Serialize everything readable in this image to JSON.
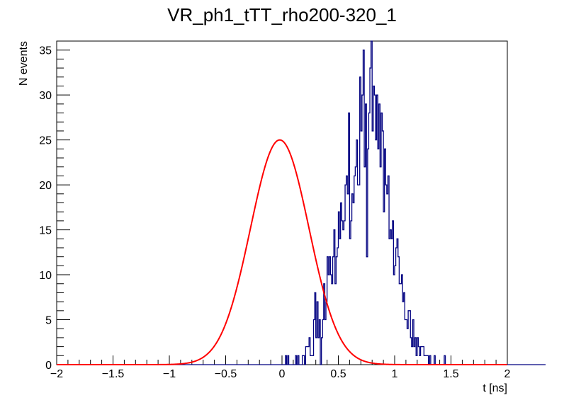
{
  "chart_data": {
    "type": "histogram",
    "title": "VR_ph1_tTT_rho200-320_1",
    "xlabel": "t [ns]",
    "ylabel": "N events",
    "xlim": [
      -2,
      2
    ],
    "ylim": [
      0,
      36
    ],
    "x_ticks": [
      "−2",
      "−1.5",
      "−1",
      "−0.5",
      "0",
      "0.5",
      "1",
      "1.5",
      "2"
    ],
    "x_tick_values": [
      -2,
      -1.5,
      -1,
      -0.5,
      0,
      0.5,
      1,
      1.5,
      2
    ],
    "y_ticks": [
      "0",
      "5",
      "10",
      "15",
      "20",
      "25",
      "30",
      "35"
    ],
    "y_tick_values": [
      0,
      5,
      10,
      15,
      20,
      25,
      30,
      35
    ],
    "grid": false,
    "legend": "none",
    "histogram": {
      "name": "",
      "color": "#000080",
      "bin_low": -2,
      "bin_width": 0.01,
      "values": [
        0,
        0,
        0,
        0,
        0,
        0,
        0,
        0,
        0,
        0,
        0,
        0,
        0,
        0,
        0,
        0,
        0,
        0,
        0,
        0,
        0,
        0,
        0,
        0,
        0,
        0,
        0,
        0,
        0,
        0,
        0,
        0,
        0,
        0,
        0,
        0,
        0,
        0,
        0,
        0,
        0,
        0,
        0,
        0,
        0,
        0,
        0,
        0,
        0,
        0,
        0,
        0,
        0,
        0,
        0,
        0,
        0,
        0,
        0,
        0,
        0,
        0,
        0,
        0,
        0,
        0,
        0,
        0,
        0,
        0,
        0,
        0,
        0,
        0,
        0,
        0,
        0,
        0,
        0,
        0,
        0,
        0,
        0,
        0,
        0,
        0,
        0,
        0,
        0,
        0,
        0,
        0,
        0,
        0,
        0,
        0,
        0,
        0,
        0,
        0,
        0,
        0,
        0,
        0,
        0,
        0,
        0,
        0,
        0,
        0,
        0,
        0,
        0,
        0,
        0,
        0,
        0,
        0,
        0,
        0,
        0,
        0,
        0,
        0,
        0,
        0,
        0,
        0,
        0,
        0,
        0,
        0,
        0,
        0,
        0,
        0,
        0,
        0,
        0,
        0,
        0,
        0,
        0,
        0,
        0,
        0,
        0,
        0,
        0,
        0,
        0,
        0,
        0,
        0,
        0,
        0,
        0,
        0,
        0,
        0,
        0,
        0,
        0,
        0,
        0,
        0,
        0,
        0,
        0,
        0,
        0,
        0,
        0,
        0,
        0,
        0,
        0,
        0,
        0,
        0,
        0,
        0,
        0,
        0,
        0,
        0,
        0,
        0,
        0,
        0,
        0,
        0,
        0,
        0,
        0,
        0,
        0,
        0,
        0,
        0,
        0,
        0,
        0,
        1,
        0,
        1,
        0,
        0,
        0,
        0,
        0,
        0,
        1,
        0,
        1,
        0,
        0,
        0,
        1,
        1,
        0,
        2,
        2,
        2,
        3,
        1,
        1,
        1,
        5,
        8,
        3,
        7,
        3,
        5,
        0,
        3,
        5,
        9,
        5,
        7,
        12,
        10,
        12,
        10,
        9,
        12,
        15,
        9,
        12,
        13,
        17,
        14,
        18,
        16,
        15,
        16,
        20,
        21,
        19,
        28,
        14,
        16,
        19,
        18,
        21,
        22,
        25,
        20,
        20,
        32,
        26,
        30,
        35,
        22,
        29,
        12,
        24,
        28,
        33,
        36,
        26,
        31,
        30,
        25,
        30,
        24,
        29,
        22,
        28,
        26,
        17,
        24,
        20,
        19,
        21,
        14,
        15,
        14,
        16,
        10,
        11,
        13,
        14,
        12,
        9,
        9,
        10,
        7,
        8,
        5,
        5,
        4,
        6,
        6,
        3,
        2,
        5,
        2,
        3,
        1,
        3,
        2,
        1,
        2,
        2,
        2,
        1,
        1,
        1,
        1,
        0,
        1,
        0,
        0,
        0,
        1,
        0,
        0,
        0,
        0,
        0,
        0,
        0,
        0,
        1,
        0,
        0,
        0,
        0,
        0,
        0,
        0,
        0,
        0,
        0,
        0,
        0,
        0,
        0,
        0,
        0,
        0,
        0,
        0,
        0,
        0,
        0,
        0,
        0,
        0,
        0,
        0,
        0,
        0,
        0,
        0,
        0,
        0,
        0,
        0,
        0,
        0,
        0,
        0,
        0,
        0,
        0,
        0,
        0,
        0,
        0,
        0,
        0,
        0,
        0,
        0,
        0,
        0,
        0,
        0,
        0,
        0,
        0,
        0,
        0,
        0,
        0,
        0,
        0,
        0,
        0,
        0,
        0,
        0,
        0,
        0,
        0,
        0,
        0,
        0,
        0,
        0,
        0,
        0,
        0,
        0,
        0,
        0,
        0,
        0,
        0,
        0,
        0,
        0
      ]
    },
    "fit": {
      "name": "",
      "type": "gaussian",
      "color": "#ff0000",
      "amplitude": 25,
      "mean": -0.02,
      "sigma": 0.26
    }
  }
}
